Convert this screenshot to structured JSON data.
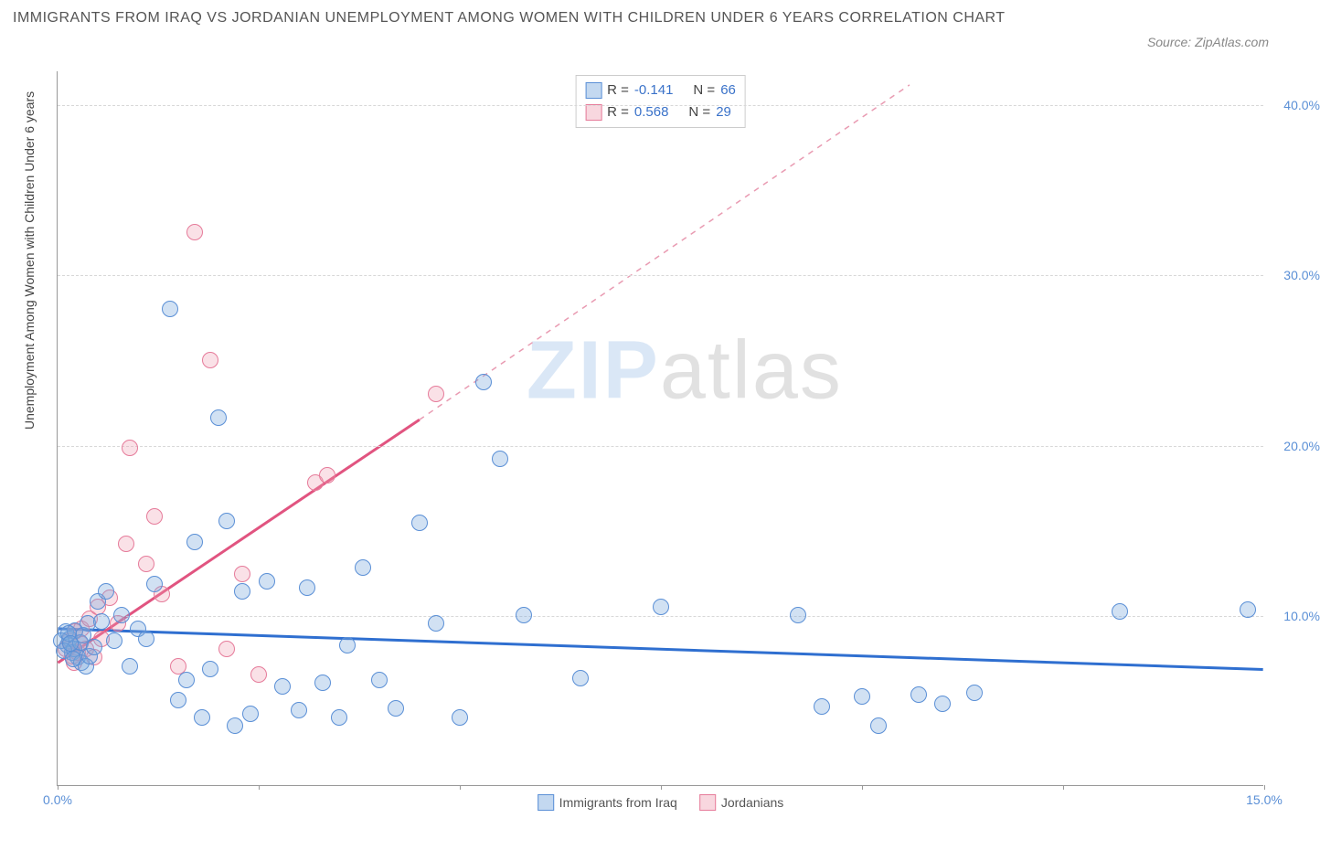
{
  "title": "IMMIGRANTS FROM IRAQ VS JORDANIAN UNEMPLOYMENT AMONG WOMEN WITH CHILDREN UNDER 6 YEARS CORRELATION CHART",
  "source": "Source: ZipAtlas.com",
  "watermark": {
    "part1": "ZIP",
    "part2": "atlas"
  },
  "y_axis_label": "Unemployment Among Women with Children Under 6 years",
  "chart": {
    "type": "scatter",
    "background_color": "#ffffff",
    "grid_color": "#d8d8d8",
    "xlim": [
      0,
      15
    ],
    "ylim": [
      0,
      42
    ],
    "x_ticks": [
      0,
      2.5,
      5,
      7.5,
      10,
      12.5,
      15
    ],
    "x_tick_labels": [
      "0.0%",
      "",
      "",
      "",
      "",
      "",
      "15.0%"
    ],
    "y_ticks": [
      10,
      20,
      30,
      40
    ],
    "y_tick_labels": [
      "10.0%",
      "20.0%",
      "30.0%",
      "40.0%"
    ],
    "marker_radius": 9,
    "series_blue": {
      "name": "Immigrants from Iraq",
      "color_fill": "rgba(122,168,222,0.35)",
      "color_stroke": "#5a8fd6",
      "R": "-0.141",
      "N": "66",
      "trend": {
        "x1": 0,
        "y1": 9.2,
        "x2": 15,
        "y2": 6.8,
        "stroke": "#2f6fd0",
        "width": 3,
        "dash": "none"
      },
      "points": [
        [
          0.1,
          9.0
        ],
        [
          0.12,
          8.2
        ],
        [
          0.15,
          8.6
        ],
        [
          0.18,
          7.8
        ],
        [
          0.2,
          8.0
        ],
        [
          0.22,
          9.1
        ],
        [
          0.25,
          7.5
        ],
        [
          0.28,
          8.4
        ],
        [
          0.3,
          7.2
        ],
        [
          0.32,
          8.8
        ],
        [
          0.35,
          7.0
        ],
        [
          0.38,
          9.5
        ],
        [
          0.4,
          7.6
        ],
        [
          0.45,
          8.1
        ],
        [
          0.5,
          10.8
        ],
        [
          0.55,
          9.6
        ],
        [
          0.6,
          11.4
        ],
        [
          0.7,
          8.5
        ],
        [
          0.8,
          10.0
        ],
        [
          0.9,
          7.0
        ],
        [
          1.0,
          9.2
        ],
        [
          1.1,
          8.6
        ],
        [
          1.2,
          11.8
        ],
        [
          1.4,
          28.0
        ],
        [
          1.5,
          5.0
        ],
        [
          1.6,
          6.2
        ],
        [
          1.7,
          14.3
        ],
        [
          1.8,
          4.0
        ],
        [
          1.9,
          6.8
        ],
        [
          2.0,
          21.6
        ],
        [
          2.1,
          15.5
        ],
        [
          2.2,
          3.5
        ],
        [
          2.3,
          11.4
        ],
        [
          2.4,
          4.2
        ],
        [
          2.6,
          12.0
        ],
        [
          2.8,
          5.8
        ],
        [
          3.0,
          4.4
        ],
        [
          3.1,
          11.6
        ],
        [
          3.3,
          6.0
        ],
        [
          3.5,
          4.0
        ],
        [
          3.6,
          8.2
        ],
        [
          3.8,
          12.8
        ],
        [
          4.0,
          6.2
        ],
        [
          4.2,
          4.5
        ],
        [
          4.5,
          15.4
        ],
        [
          4.7,
          9.5
        ],
        [
          5.0,
          4.0
        ],
        [
          5.3,
          23.7
        ],
        [
          5.5,
          19.2
        ],
        [
          5.8,
          10.0
        ],
        [
          6.5,
          6.3
        ],
        [
          7.5,
          10.5
        ],
        [
          9.2,
          10.0
        ],
        [
          9.5,
          4.6
        ],
        [
          10.0,
          5.2
        ],
        [
          10.2,
          3.5
        ],
        [
          10.7,
          5.3
        ],
        [
          11.0,
          4.8
        ],
        [
          11.4,
          5.4
        ],
        [
          13.2,
          10.2
        ],
        [
          14.8,
          10.3
        ],
        [
          0.05,
          8.5
        ],
        [
          0.08,
          7.9
        ],
        [
          0.14,
          8.9
        ],
        [
          0.16,
          8.3
        ],
        [
          0.19,
          7.4
        ]
      ]
    },
    "series_pink": {
      "name": "Jordanians",
      "color_fill": "rgba(238,156,176,0.30)",
      "color_stroke": "#e67b9a",
      "R": "0.568",
      "N": "29",
      "trend_solid": {
        "x1": 0,
        "y1": 7.2,
        "x2": 4.5,
        "y2": 21.5,
        "stroke": "#e15480",
        "width": 3
      },
      "trend_dash": {
        "x1": 4.5,
        "y1": 21.5,
        "x2": 10.6,
        "y2": 41.2,
        "stroke": "#e99bb2",
        "width": 1.5,
        "dash": "6,6"
      },
      "points": [
        [
          0.1,
          8.0
        ],
        [
          0.15,
          8.5
        ],
        [
          0.18,
          7.6
        ],
        [
          0.2,
          7.2
        ],
        [
          0.22,
          9.0
        ],
        [
          0.25,
          7.8
        ],
        [
          0.28,
          8.3
        ],
        [
          0.3,
          9.2
        ],
        [
          0.35,
          8.0
        ],
        [
          0.4,
          9.8
        ],
        [
          0.45,
          7.5
        ],
        [
          0.5,
          10.5
        ],
        [
          0.55,
          8.6
        ],
        [
          0.65,
          11.0
        ],
        [
          0.75,
          9.5
        ],
        [
          0.85,
          14.2
        ],
        [
          0.9,
          19.8
        ],
        [
          1.1,
          13.0
        ],
        [
          1.2,
          15.8
        ],
        [
          1.3,
          11.2
        ],
        [
          1.5,
          7.0
        ],
        [
          1.7,
          32.5
        ],
        [
          1.9,
          25.0
        ],
        [
          2.1,
          8.0
        ],
        [
          2.3,
          12.4
        ],
        [
          2.5,
          6.5
        ],
        [
          3.2,
          17.8
        ],
        [
          3.35,
          18.2
        ],
        [
          4.7,
          23.0
        ]
      ]
    }
  },
  "bottom_legend": {
    "item1": "Immigrants from Iraq",
    "item2": "Jordanians"
  },
  "top_legend": {
    "r_label": "R =",
    "n_label": "N ="
  }
}
